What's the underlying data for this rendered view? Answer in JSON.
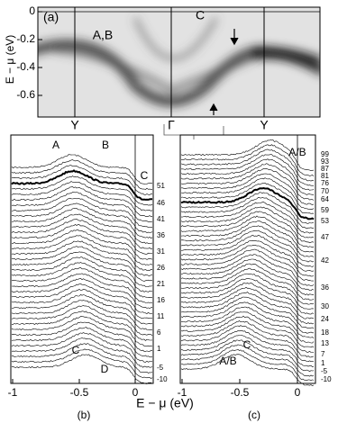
{
  "panel_a": {
    "label": "(a)",
    "y_axis_label": "E − μ (eV)",
    "y_ticks": [
      "0",
      "-0.2",
      "-0.4",
      "-0.6"
    ],
    "x_labels": [
      "Y",
      "Γ",
      "Y"
    ],
    "annotations": [
      "A,B",
      "C"
    ]
  },
  "panel_b": {
    "label": "(b)",
    "x_ticks": [
      "-1",
      "-0.5",
      "0"
    ],
    "curve_labels": [
      "51",
      "46",
      "41",
      "36",
      "31",
      "26",
      "21",
      "16",
      "11",
      "6",
      "1",
      "-5",
      "-10"
    ],
    "annotations": [
      "A",
      "B",
      "C",
      "C",
      "D"
    ]
  },
  "panel_c": {
    "label": "(c)",
    "x_ticks": [
      "-1",
      "-0.5",
      "0"
    ],
    "curve_labels": [
      "99",
      "93",
      "87",
      "81",
      "76",
      "70",
      "64",
      "59",
      "53",
      "47",
      "42",
      "36",
      "30",
      "24",
      "18",
      "13",
      "7",
      "1",
      "-5",
      "-10"
    ],
    "annotations": [
      "A/B",
      "A/B",
      "C"
    ]
  },
  "x_axis_label": "E − μ (eV)"
}
